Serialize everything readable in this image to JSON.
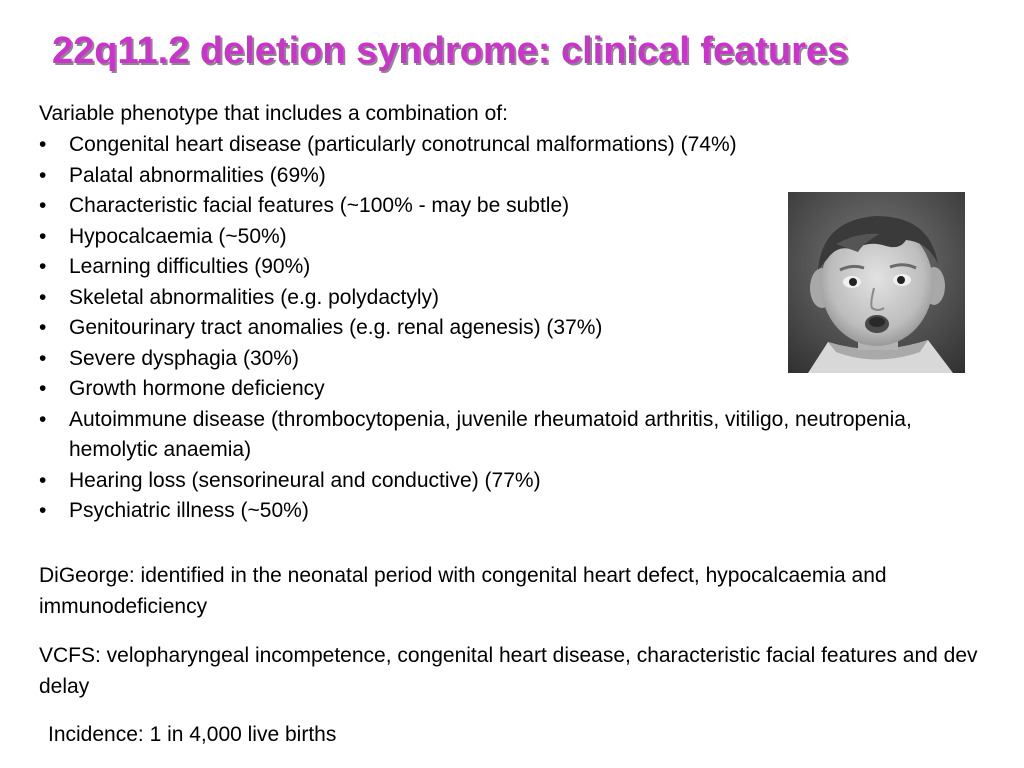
{
  "slide": {
    "title": "22q11.2 deletion syndrome: clinical features",
    "title_color": "#cc33cc",
    "intro": "Variable phenotype that includes a combination of:",
    "bullet_glyph": "•",
    "features": [
      "Congenital heart disease (particularly conotruncal malformations) (74%)",
      "Palatal abnormalities (69%)",
      "Characteristic facial features (~100% - may be subtle)",
      "Hypocalcaemia (~50%)",
      "Learning difficulties (90%)",
      "Skeletal abnormalities (e.g. polydactyly)",
      "Genitourinary tract anomalies (e.g. renal agenesis) (37%)",
      "Severe dysphagia (30%)",
      "Growth hormone deficiency",
      "Autoimmune disease (thrombocytopenia, juvenile rheumatoid arthritis, vitiligo, neutropenia, hemolytic anaemia)",
      "Hearing loss (sensorineural and conductive) (77%)",
      "Psychiatric illness (~50%)"
    ],
    "digeorge": "DiGeorge: identified in the neonatal period with congenital heart defect, hypocalcaemia and immunodeficiency",
    "vcfs": "VCFS: velopharyngeal incompetence, congenital heart disease, characteristic facial features and dev delay",
    "incidence": "Incidence: 1 in 4,000 live births"
  }
}
